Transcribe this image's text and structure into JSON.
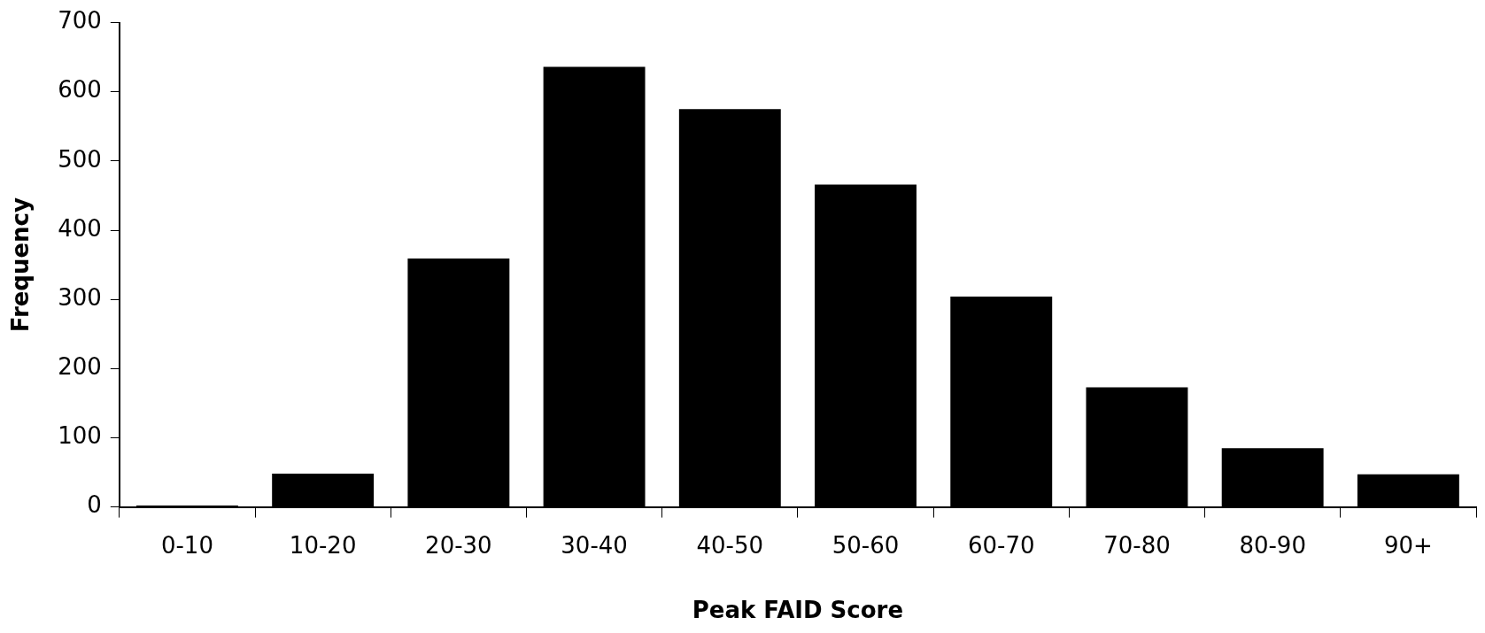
{
  "chart_data": {
    "type": "bar",
    "xlabel": "Peak FAID Score",
    "ylabel": "Frequency",
    "categories": [
      "0-10",
      "10-20",
      "20-30",
      "30-40",
      "40-50",
      "50-60",
      "60-70",
      "70-80",
      "80-90",
      "90+"
    ],
    "values": [
      2,
      48,
      359,
      636,
      575,
      466,
      304,
      173,
      85,
      47
    ],
    "color": "#000000",
    "ylim": [
      0,
      700
    ],
    "yticks": [
      0,
      100,
      200,
      300,
      400,
      500,
      600,
      700
    ],
    "grid": false,
    "legend": false
  }
}
